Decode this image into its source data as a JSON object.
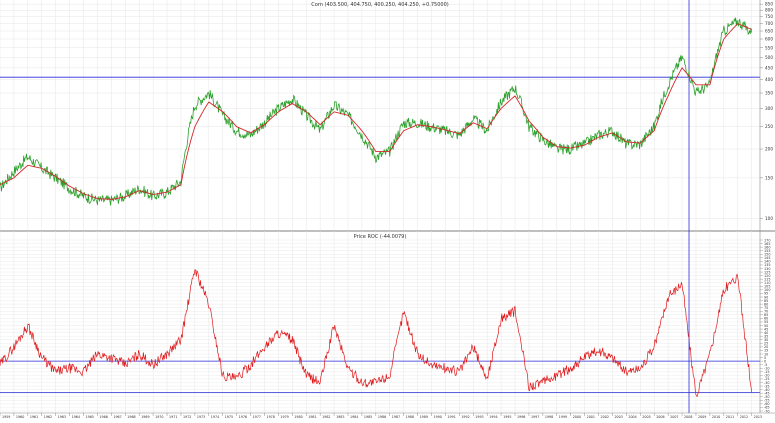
{
  "chart_data": [
    {
      "type": "line",
      "title": "Corn (403.500, 404.750, 400.250, 404.250, +0.75000)",
      "yscale": "log",
      "ylim": [
        90,
        860
      ],
      "ytick_labels": [
        "850",
        "800",
        "750",
        "700",
        "650",
        "600",
        "550",
        "500",
        "450",
        "400",
        "350",
        "300",
        "250",
        "200",
        "150",
        "100"
      ],
      "ytick_values": [
        850,
        800,
        750,
        700,
        650,
        600,
        550,
        500,
        450,
        400,
        350,
        300,
        250,
        200,
        150,
        100
      ],
      "hline": 410,
      "vline_year": 2008.5,
      "grid": true,
      "series": [
        {
          "color": "#2ca02c",
          "x": [
            1959,
            1960,
            1961,
            1962,
            1963,
            1964,
            1965,
            1966,
            1967,
            1968,
            1969,
            1970,
            1971,
            1972,
            1973,
            1974,
            1975,
            1976,
            1977,
            1978,
            1979,
            1980,
            1981,
            1982,
            1983,
            1984,
            1985,
            1986,
            1987,
            1988,
            1989,
            1990,
            1991,
            1992,
            1993,
            1994,
            1995,
            1996,
            1997,
            1998,
            1999,
            2000,
            2001,
            2002,
            2003,
            2004,
            2005,
            2006,
            2007,
            2008,
            2009,
            2010,
            2011,
            2012,
            2013
          ],
          "values": [
            135,
            160,
            185,
            165,
            150,
            135,
            125,
            120,
            120,
            125,
            135,
            125,
            130,
            145,
            310,
            350,
            280,
            240,
            230,
            260,
            300,
            330,
            280,
            240,
            310,
            280,
            230,
            185,
            195,
            260,
            260,
            250,
            240,
            230,
            270,
            240,
            320,
            370,
            250,
            220,
            200,
            200,
            210,
            230,
            240,
            210,
            210,
            250,
            380,
            500,
            350,
            380,
            650,
            720,
            640
          ]
        },
        {
          "color": "#d62728",
          "x": [
            1959,
            1960,
            1961,
            1962,
            1963,
            1964,
            1965,
            1966,
            1967,
            1968,
            1969,
            1970,
            1971,
            1972,
            1973,
            1974,
            1975,
            1976,
            1977,
            1978,
            1979,
            1980,
            1981,
            1982,
            1983,
            1984,
            1985,
            1986,
            1987,
            1988,
            1989,
            1990,
            1991,
            1992,
            1993,
            1994,
            1995,
            1996,
            1997,
            1998,
            1999,
            2000,
            2001,
            2002,
            2003,
            2004,
            2005,
            2006,
            2007,
            2008,
            2009,
            2010,
            2011,
            2012,
            2013
          ],
          "values": [
            140,
            150,
            170,
            165,
            152,
            138,
            128,
            122,
            121,
            124,
            132,
            127,
            130,
            140,
            250,
            320,
            290,
            250,
            235,
            255,
            290,
            315,
            290,
            255,
            290,
            280,
            240,
            195,
            195,
            240,
            255,
            250,
            242,
            233,
            260,
            245,
            300,
            340,
            265,
            225,
            205,
            202,
            208,
            225,
            235,
            215,
            212,
            240,
            340,
            450,
            380,
            380,
            600,
            700,
            660
          ]
        }
      ]
    },
    {
      "type": "line",
      "title": "Price ROC (-44.0079)",
      "ylim": [
        -70,
        170
      ],
      "ytick_labels": [
        "170",
        "165",
        "160",
        "155",
        "150",
        "145",
        "140",
        "135",
        "130",
        "125",
        "120",
        "115",
        "110",
        "105",
        "100",
        "95",
        "90",
        "85",
        "80",
        "75",
        "70",
        "65",
        "60",
        "55",
        "50",
        "45",
        "40",
        "35",
        "30",
        "25",
        "20",
        "15",
        "10",
        "5",
        "0",
        "-5",
        "-10",
        "-15",
        "-20",
        "-25",
        "-30",
        "-35",
        "-40",
        "-45",
        "-50",
        "-55",
        "-60",
        "-65",
        "-70"
      ],
      "ytick_values": [
        170,
        165,
        160,
        155,
        150,
        145,
        140,
        135,
        130,
        125,
        120,
        115,
        110,
        105,
        100,
        95,
        90,
        85,
        80,
        75,
        70,
        65,
        60,
        55,
        50,
        45,
        40,
        35,
        30,
        25,
        20,
        15,
        10,
        5,
        0,
        -5,
        -10,
        -15,
        -20,
        -25,
        -30,
        -35,
        -40,
        -45,
        -50,
        -55,
        -60,
        -65,
        -70
      ],
      "hlines": [
        0,
        -44
      ],
      "vline_year": 2008.5,
      "grid": true,
      "series": [
        {
          "color": "#e0191b",
          "x": [
            1959,
            1960,
            1961,
            1962,
            1963,
            1964,
            1965,
            1966,
            1967,
            1968,
            1969,
            1970,
            1971,
            1972,
            1973,
            1974,
            1975,
            1976,
            1977,
            1978,
            1979,
            1980,
            1981,
            1982,
            1983,
            1984,
            1985,
            1986,
            1987,
            1988,
            1989,
            1990,
            1991,
            1992,
            1993,
            1994,
            1995,
            1996,
            1997,
            1998,
            1999,
            2000,
            2001,
            2002,
            2003,
            2004,
            2005,
            2006,
            2007,
            2008,
            2009,
            2010,
            2011,
            2012,
            2013
          ],
          "values": [
            -5,
            20,
            50,
            5,
            -15,
            -10,
            -15,
            10,
            5,
            -5,
            10,
            -5,
            10,
            30,
            130,
            80,
            -20,
            -25,
            -5,
            20,
            40,
            30,
            -20,
            -30,
            50,
            -10,
            -30,
            -30,
            -20,
            70,
            10,
            -5,
            -10,
            -15,
            20,
            -25,
            60,
            70,
            -35,
            -30,
            -20,
            -10,
            5,
            15,
            5,
            -15,
            -10,
            20,
            90,
            110,
            -50,
            10,
            100,
            120,
            -44
          ]
        }
      ]
    }
  ],
  "x_axis": {
    "labels": [
      "1959",
      "1960",
      "1961",
      "1962",
      "1963",
      "1964",
      "1965",
      "1966",
      "1967",
      "1968",
      "1969",
      "1970",
      "1971",
      "1972",
      "1973",
      "1974",
      "1975",
      "1976",
      "1977",
      "1978",
      "1979",
      "1980",
      "1981",
      "1982",
      "1983",
      "1984",
      "1985",
      "1986",
      "1987",
      "1988",
      "1989",
      "1990",
      "1991",
      "1992",
      "1993",
      "1994",
      "1995",
      "1996",
      "1997",
      "1998",
      "1999",
      "2000",
      "2001",
      "2002",
      "2003",
      "2004",
      "2005",
      "2006",
      "2007",
      "2008",
      "2009",
      "2010",
      "2011",
      "2012",
      "2013"
    ],
    "start_year": 1959,
    "end_year": 2013.6
  },
  "colors": {
    "price": "#2ca02c",
    "average": "#d62728",
    "roc": "#e0191b",
    "reference_lines": "#2b2bd9",
    "grid": "#e6e6e6"
  }
}
